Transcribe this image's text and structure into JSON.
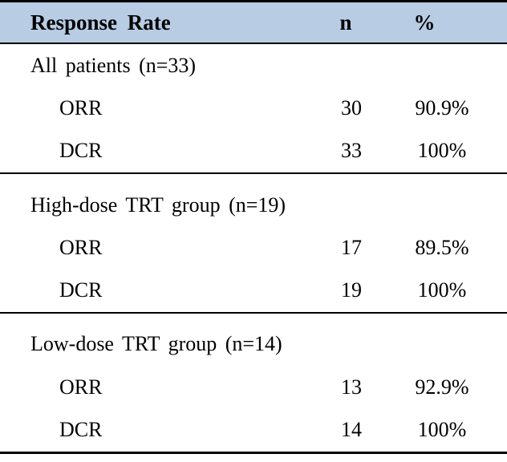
{
  "table": {
    "header": {
      "response_rate": "Response Rate",
      "n": "n",
      "percent": "%"
    },
    "sections": [
      {
        "label": "All patients (n=33)",
        "rows": [
          {
            "label": "ORR",
            "n": "30",
            "percent": "90.9%"
          },
          {
            "label": "DCR",
            "n": "33",
            "percent": "100%"
          }
        ]
      },
      {
        "label": "High-dose TRT group (n=19)",
        "rows": [
          {
            "label": "ORR",
            "n": "17",
            "percent": "89.5%"
          },
          {
            "label": "DCR",
            "n": "19",
            "percent": "100%"
          }
        ]
      },
      {
        "label": "Low-dose TRT group (n=14)",
        "rows": [
          {
            "label": "ORR",
            "n": "13",
            "percent": "92.9%"
          },
          {
            "label": "DCR",
            "n": "14",
            "percent": "100%"
          }
        ]
      }
    ],
    "colors": {
      "header_bg": "#B8CCE4",
      "border": "#000000",
      "text": "#000000"
    }
  }
}
